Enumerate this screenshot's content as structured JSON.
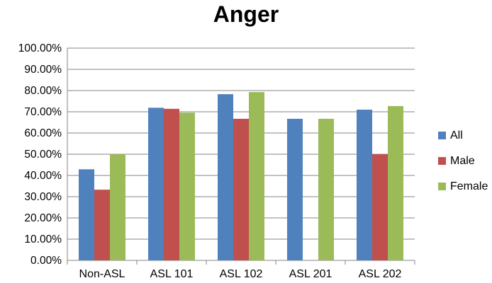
{
  "chart_data": {
    "type": "bar",
    "title": "Anger",
    "xlabel": "",
    "ylabel": "",
    "categories": [
      "Non-ASL",
      "ASL 101",
      "ASL 102",
      "ASL 201",
      "ASL 202"
    ],
    "series": [
      {
        "name": "All",
        "color": "#4F81BD",
        "values": [
          42.9,
          71.9,
          78.3,
          66.7,
          71.0
        ]
      },
      {
        "name": "Male",
        "color": "#C0504D",
        "values": [
          33.3,
          71.4,
          66.7,
          0.0,
          50.0
        ]
      },
      {
        "name": "Female",
        "color": "#9BBB59",
        "values": [
          50.0,
          69.6,
          79.3,
          66.7,
          72.7
        ]
      }
    ],
    "ylim": [
      0,
      100
    ],
    "y_ticks": [
      "0.00%",
      "10.00%",
      "20.00%",
      "30.00%",
      "40.00%",
      "50.00%",
      "60.00%",
      "70.00%",
      "80.00%",
      "90.00%",
      "100.00%"
    ],
    "grid": true,
    "legend_position": "right"
  }
}
